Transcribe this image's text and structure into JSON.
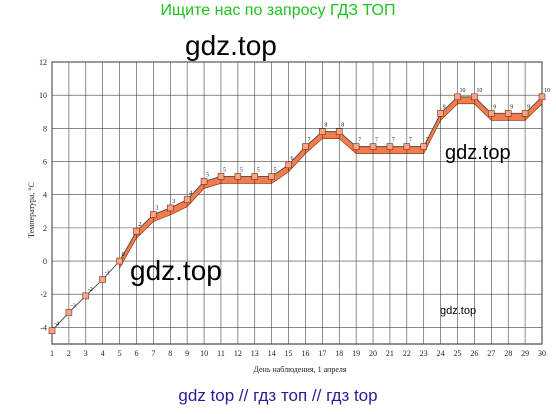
{
  "header": {
    "text": "Ищите нас по запросу ГДЗ ТОП"
  },
  "watermarks": {
    "w1": "gdz.top",
    "w2": "gdz.top",
    "w3": "gdz.top",
    "w4": "gdz.top"
  },
  "footer": {
    "text": "gdz top  //  гдз топ  //  гдз top"
  },
  "chart_data": {
    "type": "line",
    "title": "",
    "xlabel": "День наблюдения, 1 апреля",
    "ylabel": "Температура, °С",
    "xlim": [
      1,
      30
    ],
    "ylim": [
      -5,
      12
    ],
    "x_ticks": [
      1,
      2,
      3,
      4,
      5,
      6,
      7,
      8,
      9,
      10,
      11,
      12,
      13,
      14,
      15,
      16,
      17,
      18,
      19,
      20,
      21,
      22,
      23,
      24,
      25,
      26,
      27,
      28,
      29,
      30
    ],
    "y_ticks": [
      -4,
      -2,
      0,
      2,
      4,
      6,
      8,
      10,
      12
    ],
    "grid": true,
    "series": [
      {
        "x": [
          1,
          2,
          3,
          4,
          5,
          6,
          7,
          8,
          9,
          10,
          11,
          12,
          13,
          14,
          15,
          16,
          17,
          18,
          19,
          20,
          21,
          22,
          23,
          24,
          25,
          26,
          27,
          28,
          29,
          30
        ],
        "values": [
          -4.2,
          -3.1,
          -2.1,
          -1.1,
          0,
          1.8,
          2.8,
          3.2,
          3.7,
          4.8,
          5.1,
          5.1,
          5.1,
          5.1,
          5.8,
          6.9,
          7.8,
          7.8,
          6.9,
          6.9,
          6.9,
          6.9,
          6.9,
          8.9,
          9.9,
          9.9,
          8.9,
          8.9,
          8.9,
          9.9
        ],
        "labels": [
          "-4",
          "-3",
          "-2",
          "-1",
          "0",
          "2",
          "3",
          "3",
          "4",
          "5",
          "5",
          "5",
          "5",
          "5",
          "6",
          "7",
          "8",
          "8",
          "7",
          "7",
          "7",
          "7",
          "7",
          "9",
          "10",
          "10",
          "9",
          "9",
          "9",
          "10"
        ]
      }
    ],
    "colors": {
      "line": "#555555",
      "fill": "#f47c4c",
      "fill_edge": "#7a2b0c",
      "marker": "#f5a58a",
      "grid": "#444444",
      "axis": "#222222"
    }
  }
}
